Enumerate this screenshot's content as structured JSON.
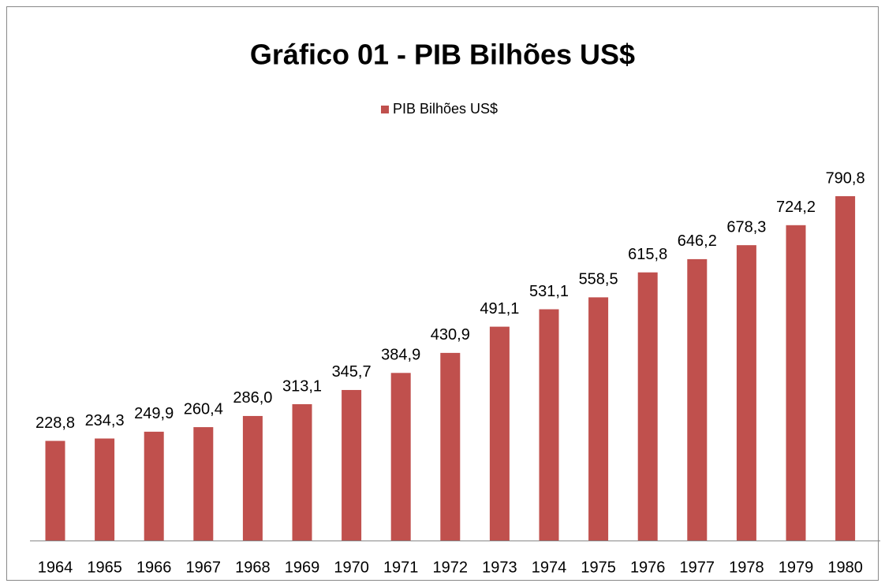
{
  "chart_data": {
    "type": "bar",
    "title": "Gráfico 01 - PIB Bilhões US$",
    "series": [
      {
        "name": "PIB Bilhões US$",
        "color": "#c0504d",
        "values": [
          228.8,
          234.3,
          249.9,
          260.4,
          286.0,
          313.1,
          345.7,
          384.9,
          430.9,
          491.1,
          531.1,
          558.5,
          615.8,
          646.2,
          678.3,
          724.2,
          790.8
        ],
        "value_labels": [
          "228,8",
          "234,3",
          "249,9",
          "260,4",
          "286,0",
          "313,1",
          "345,7",
          "384,9",
          "430,9",
          "491,1",
          "531,1",
          "558,5",
          "615,8",
          "646,2",
          "678,3",
          "724,2",
          "790,8"
        ]
      }
    ],
    "categories": [
      "1964",
      "1965",
      "1966",
      "1967",
      "1968",
      "1969",
      "1970",
      "1971",
      "1972",
      "1973",
      "1974",
      "1975",
      "1976",
      "1977",
      "1978",
      "1979",
      "1980"
    ],
    "legend": "top"
  }
}
